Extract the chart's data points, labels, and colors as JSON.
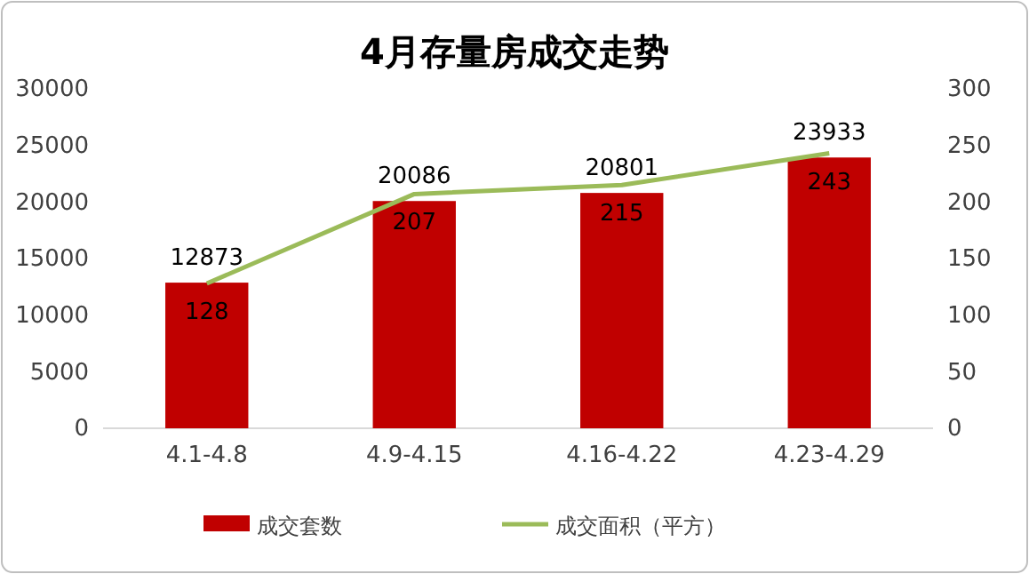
{
  "chart_data": {
    "type": "bar",
    "title": "4月存量房成交走势",
    "categories": [
      "4.1-4.8",
      "4.9-4.15",
      "4.16-4.22",
      "4.23-4.29"
    ],
    "series": [
      {
        "name": "成交套数",
        "color": "#c00000",
        "values": [
          12873,
          20086,
          20801,
          23933
        ]
      },
      {
        "name": "成交面积（平方）",
        "type": "line",
        "axis": "y2",
        "color": "#9bbb59",
        "values": [
          128,
          207,
          215,
          243
        ]
      }
    ],
    "ylim": [
      0,
      30000
    ],
    "yticks": [
      0,
      5000,
      10000,
      15000,
      20000,
      25000,
      30000
    ],
    "y2lim": [
      0,
      300
    ],
    "y2ticks": [
      0,
      50,
      100,
      150,
      200,
      250,
      300
    ],
    "data_labels": true,
    "legend": "bottom",
    "grid": false,
    "marker": "none",
    "line_style": "solid"
  }
}
